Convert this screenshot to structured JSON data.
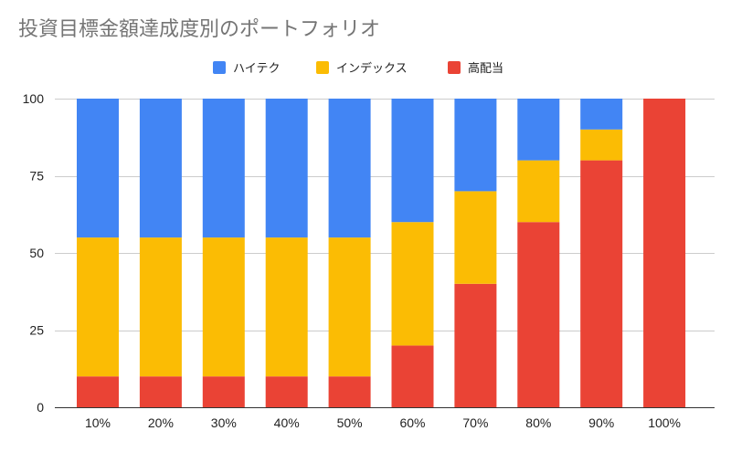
{
  "chart_data": {
    "type": "bar",
    "stacked": true,
    "title": "投資目標金額達成度別のポートフォリオ",
    "categories": [
      "10%",
      "20%",
      "30%",
      "40%",
      "50%",
      "60%",
      "70%",
      "80%",
      "90%",
      "100%"
    ],
    "series": [
      {
        "name": "高配当",
        "color": "#ea4335",
        "values": [
          10,
          10,
          10,
          10,
          10,
          20,
          40,
          60,
          80,
          100
        ]
      },
      {
        "name": "インデックス",
        "color": "#fbbc04",
        "values": [
          45,
          45,
          45,
          45,
          45,
          40,
          30,
          20,
          10,
          0
        ]
      },
      {
        "name": "ハイテク",
        "color": "#4285f4",
        "values": [
          45,
          45,
          45,
          45,
          45,
          40,
          30,
          20,
          10,
          0
        ]
      }
    ],
    "legend_order": [
      "ハイテク",
      "インデックス",
      "高配当"
    ],
    "legend_position": "top",
    "ylim": [
      0,
      100
    ],
    "yticks": [
      0,
      25,
      50,
      75,
      100
    ],
    "grid": true,
    "xlabel": "",
    "ylabel": ""
  }
}
